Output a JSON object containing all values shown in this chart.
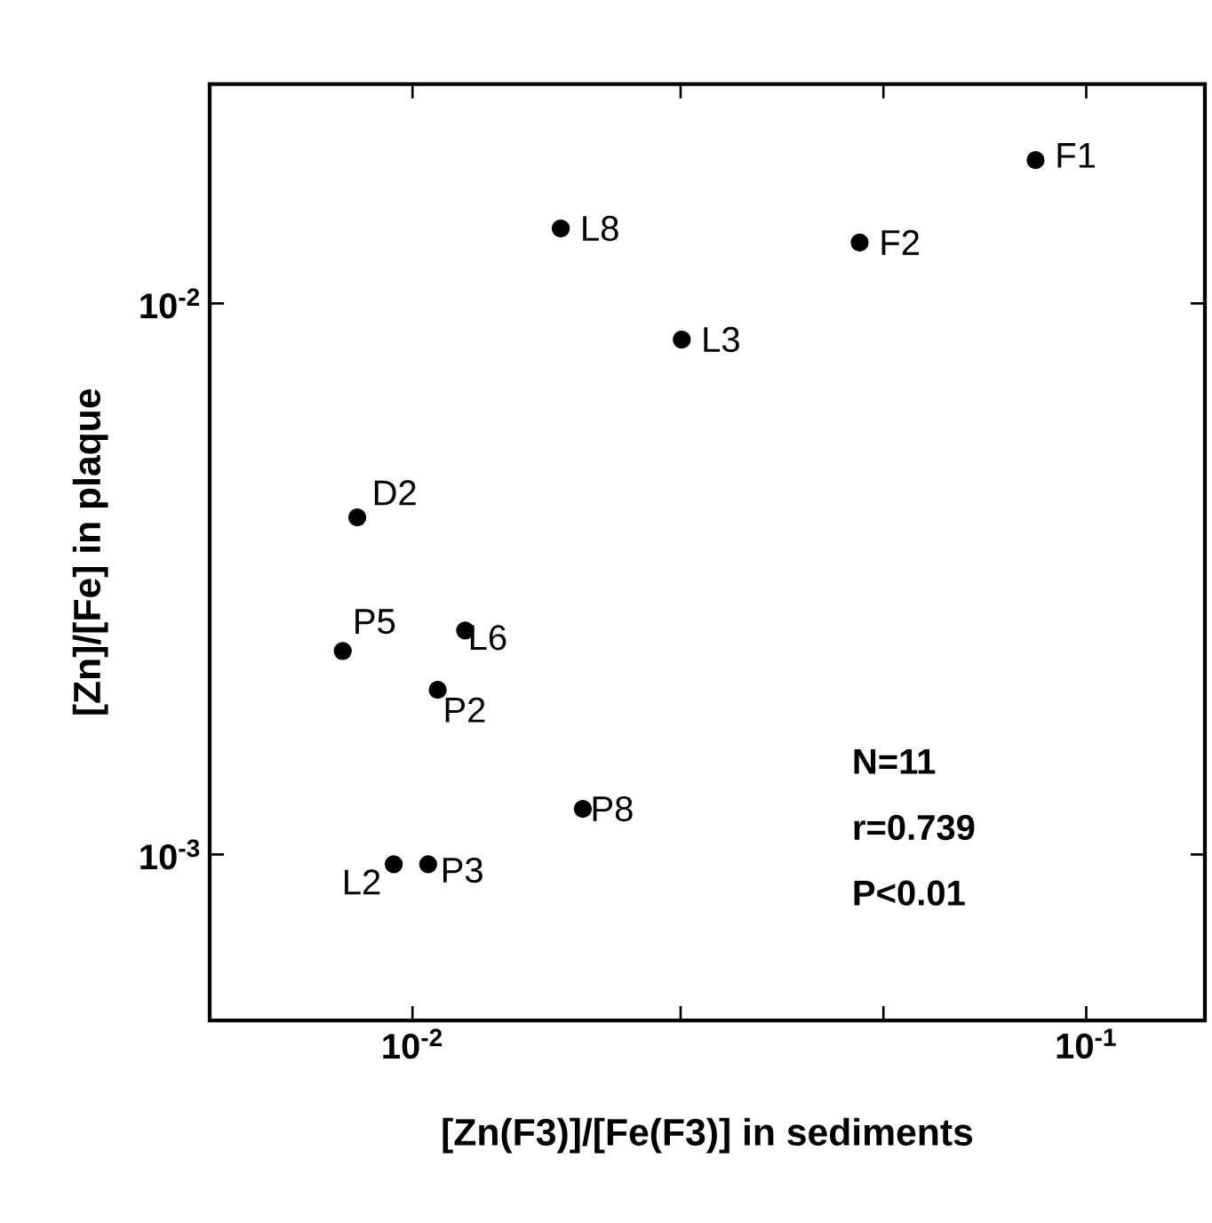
{
  "chart_data": {
    "type": "scatter",
    "xlabel": "[Zn(F3)]/[Fe(F3)] in sediments",
    "ylabel": "[Zn]/[Fe] in plaque",
    "log": "xy",
    "xlim": [
      0.005,
      0.15
    ],
    "ylim": [
      0.0005,
      0.025
    ],
    "xticks": [
      {
        "value": 0.01,
        "label": "10$^{-2}$"
      },
      {
        "value": 0.025,
        "label": null
      },
      {
        "value": 0.05,
        "label": null
      },
      {
        "value": 0.1,
        "label": "10$^{-1}$"
      }
    ],
    "yticks": [
      {
        "value": 0.001,
        "label": "10$^{-3}$"
      },
      {
        "value": 0.01,
        "label": "10$^{-2}$"
      }
    ],
    "marker": "circle",
    "series": [
      {
        "color": "#000000",
        "x": [
          0.0841,
          0.0461,
          0.0166,
          0.0251,
          0.00828,
          0.00788,
          0.01197,
          0.0109,
          0.0179,
          0.00938,
          0.01055
        ],
        "values": [
          0.0182,
          0.0129,
          0.01368,
          0.0086,
          0.00409,
          0.00234,
          0.00255,
          0.00199,
          0.00121,
          0.00096,
          0.00096
        ]
      }
    ],
    "annotations": [
      {
        "text": "F1",
        "x": 0.0841,
        "y": 0.0182
      },
      {
        "text": "F2",
        "x": 0.0461,
        "y": 0.0129
      },
      {
        "text": "L8",
        "x": 0.0166,
        "y": 0.01368
      },
      {
        "text": "L3",
        "x": 0.0251,
        "y": 0.0086
      },
      {
        "text": "D2",
        "x": 0.00828,
        "y": 0.00409
      },
      {
        "text": "P5",
        "x": 0.00788,
        "y": 0.00234
      },
      {
        "text": "L6",
        "x": 0.01197,
        "y": 0.00255
      },
      {
        "text": "P2",
        "x": 0.0109,
        "y": 0.00199
      },
      {
        "text": "P8",
        "x": 0.0179,
        "y": 0.00121
      },
      {
        "text": "L2",
        "x": 0.00938,
        "y": 0.00096
      },
      {
        "text": "P3",
        "x": 0.01055,
        "y": 0.00096
      },
      "N=11",
      "r=0.739",
      "P<0.01"
    ]
  }
}
